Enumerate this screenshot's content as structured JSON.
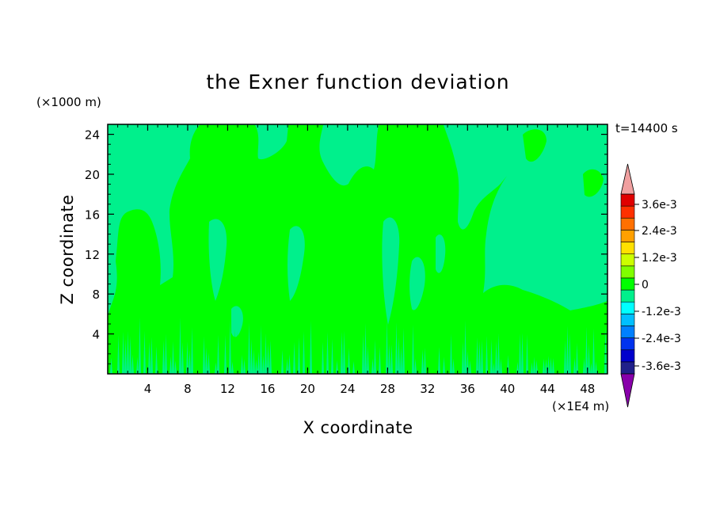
{
  "chart_data": {
    "type": "heatmap",
    "title": "the Exner function deviation",
    "xlabel": "X coordinate",
    "ylabel": "Z coordinate",
    "x_unit": "(×1E4 m)",
    "y_unit": "(×1000 m)",
    "time_label": "t=14400 s",
    "xlim": [
      0,
      50
    ],
    "ylim": [
      0,
      25
    ],
    "x_ticks": [
      4,
      8,
      12,
      16,
      20,
      24,
      28,
      32,
      36,
      40,
      44,
      48
    ],
    "y_ticks": [
      4,
      8,
      12,
      16,
      20,
      24
    ],
    "colorbar": {
      "levels": [
        -0.0042,
        -0.0036,
        -0.003,
        -0.0024,
        -0.0018,
        -0.0012,
        -0.0006,
        0,
        0.0006,
        0.0012,
        0.0018,
        0.0024,
        0.003,
        0.0036,
        0.0042
      ],
      "labels": [
        "3.6e-3",
        "2.4e-3",
        "1.2e-3",
        "0",
        "-1.2e-3",
        "-2.4e-3",
        "-3.6e-3"
      ],
      "colors": [
        "#6600aa",
        "#20208a",
        "#0000cc",
        "#0033ee",
        "#0080ff",
        "#00bfff",
        "#00ffff",
        "#00f08c",
        "#00ff00",
        "#80ff00",
        "#ccff00",
        "#ffe000",
        "#ffa000",
        "#ff7000",
        "#ff3000",
        "#e00000",
        "#f0a0a0"
      ],
      "under_color": "#8800aa",
      "over_color": "#f0a0a0"
    },
    "field_colors": {
      "background": "#00f08c",
      "positive": "#00ff00"
    }
  }
}
